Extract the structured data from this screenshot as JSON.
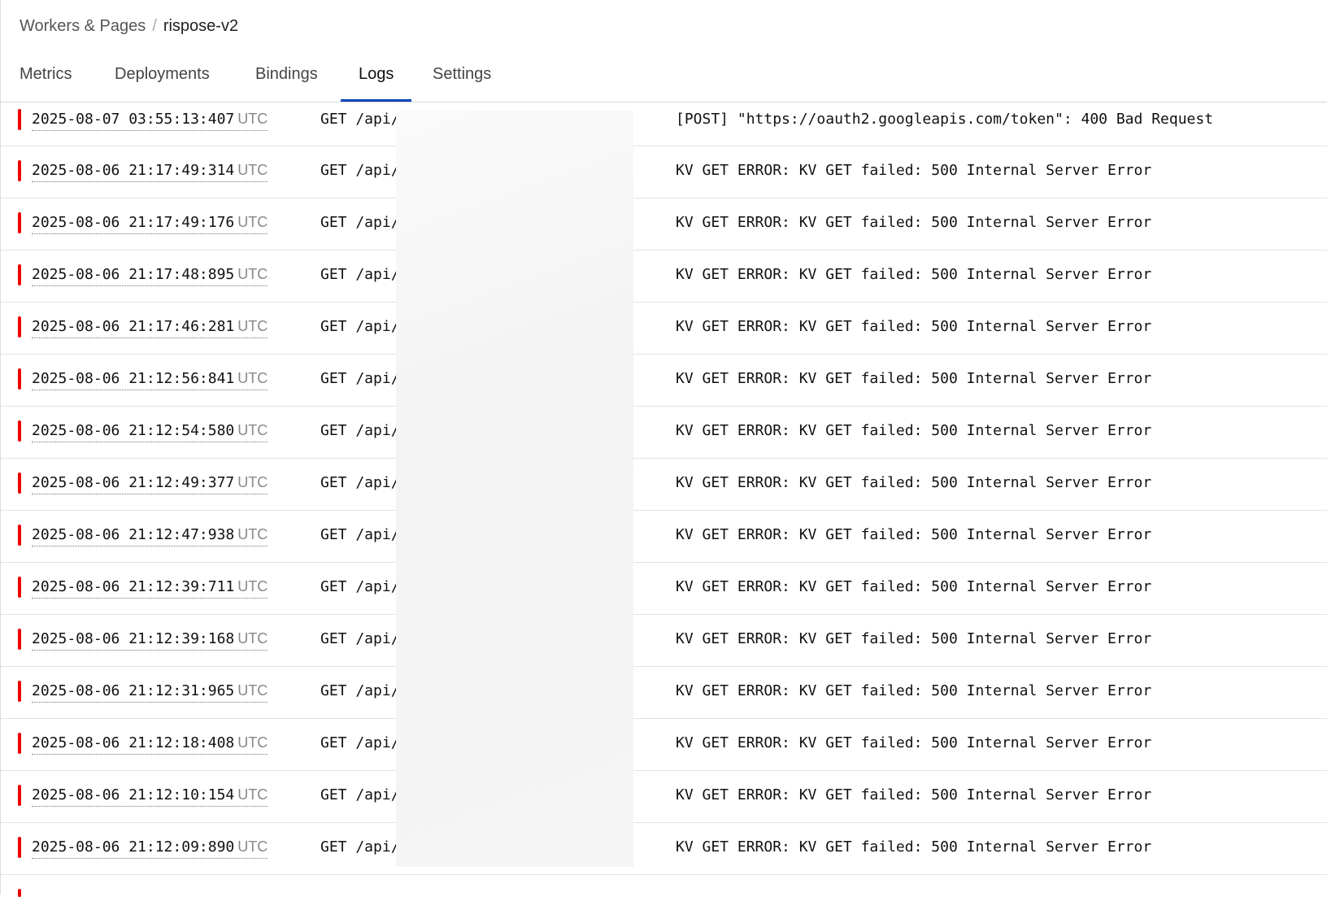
{
  "breadcrumb": {
    "parent": "Workers & Pages",
    "separator": "/",
    "current": "rispose-v2"
  },
  "tabs": [
    {
      "label": "Metrics"
    },
    {
      "label": "Deployments"
    },
    {
      "label": "Bindings"
    },
    {
      "label": "Logs",
      "active": true
    },
    {
      "label": "Settings"
    }
  ],
  "colors": {
    "error_bar": "#e00000",
    "tab_underline": "#0b45b8"
  },
  "logs": [
    {
      "timestamp": "2025-08-07 03:55:13:407",
      "tz": "UTC",
      "request": "GET /api/",
      "message": "[POST] \"https://oauth2.googleapis.com/token\": 400 Bad Request"
    },
    {
      "timestamp": "2025-08-06 21:17:49:314",
      "tz": "UTC",
      "request": "GET /api/",
      "message": "KV GET ERROR: KV GET failed: 500 Internal Server Error"
    },
    {
      "timestamp": "2025-08-06 21:17:49:176",
      "tz": "UTC",
      "request": "GET /api/",
      "message": "KV GET ERROR: KV GET failed: 500 Internal Server Error"
    },
    {
      "timestamp": "2025-08-06 21:17:48:895",
      "tz": "UTC",
      "request": "GET /api/",
      "message": "KV GET ERROR: KV GET failed: 500 Internal Server Error"
    },
    {
      "timestamp": "2025-08-06 21:17:46:281",
      "tz": "UTC",
      "request": "GET /api/",
      "message": "KV GET ERROR: KV GET failed: 500 Internal Server Error"
    },
    {
      "timestamp": "2025-08-06 21:12:56:841",
      "tz": "UTC",
      "request": "GET /api/",
      "message": "KV GET ERROR: KV GET failed: 500 Internal Server Error"
    },
    {
      "timestamp": "2025-08-06 21:12:54:580",
      "tz": "UTC",
      "request": "GET /api/",
      "message": "KV GET ERROR: KV GET failed: 500 Internal Server Error"
    },
    {
      "timestamp": "2025-08-06 21:12:49:377",
      "tz": "UTC",
      "request": "GET /api/",
      "message": "KV GET ERROR: KV GET failed: 500 Internal Server Error"
    },
    {
      "timestamp": "2025-08-06 21:12:47:938",
      "tz": "UTC",
      "request": "GET /api/",
      "message": "KV GET ERROR: KV GET failed: 500 Internal Server Error"
    },
    {
      "timestamp": "2025-08-06 21:12:39:711",
      "tz": "UTC",
      "request": "GET /api/",
      "message": "KV GET ERROR: KV GET failed: 500 Internal Server Error"
    },
    {
      "timestamp": "2025-08-06 21:12:39:168",
      "tz": "UTC",
      "request": "GET /api/",
      "message": "KV GET ERROR: KV GET failed: 500 Internal Server Error"
    },
    {
      "timestamp": "2025-08-06 21:12:31:965",
      "tz": "UTC",
      "request": "GET /api/",
      "message": "KV GET ERROR: KV GET failed: 500 Internal Server Error"
    },
    {
      "timestamp": "2025-08-06 21:12:18:408",
      "tz": "UTC",
      "request": "GET /api/",
      "message": "KV GET ERROR: KV GET failed: 500 Internal Server Error"
    },
    {
      "timestamp": "2025-08-06 21:12:10:154",
      "tz": "UTC",
      "request": "GET /api/",
      "message": "KV GET ERROR: KV GET failed: 500 Internal Server Error"
    },
    {
      "timestamp": "2025-08-06 21:12:09:890",
      "tz": "UTC",
      "request": "GET /api/",
      "message": "KV GET ERROR: KV GET failed: 500 Internal Server Error"
    }
  ]
}
